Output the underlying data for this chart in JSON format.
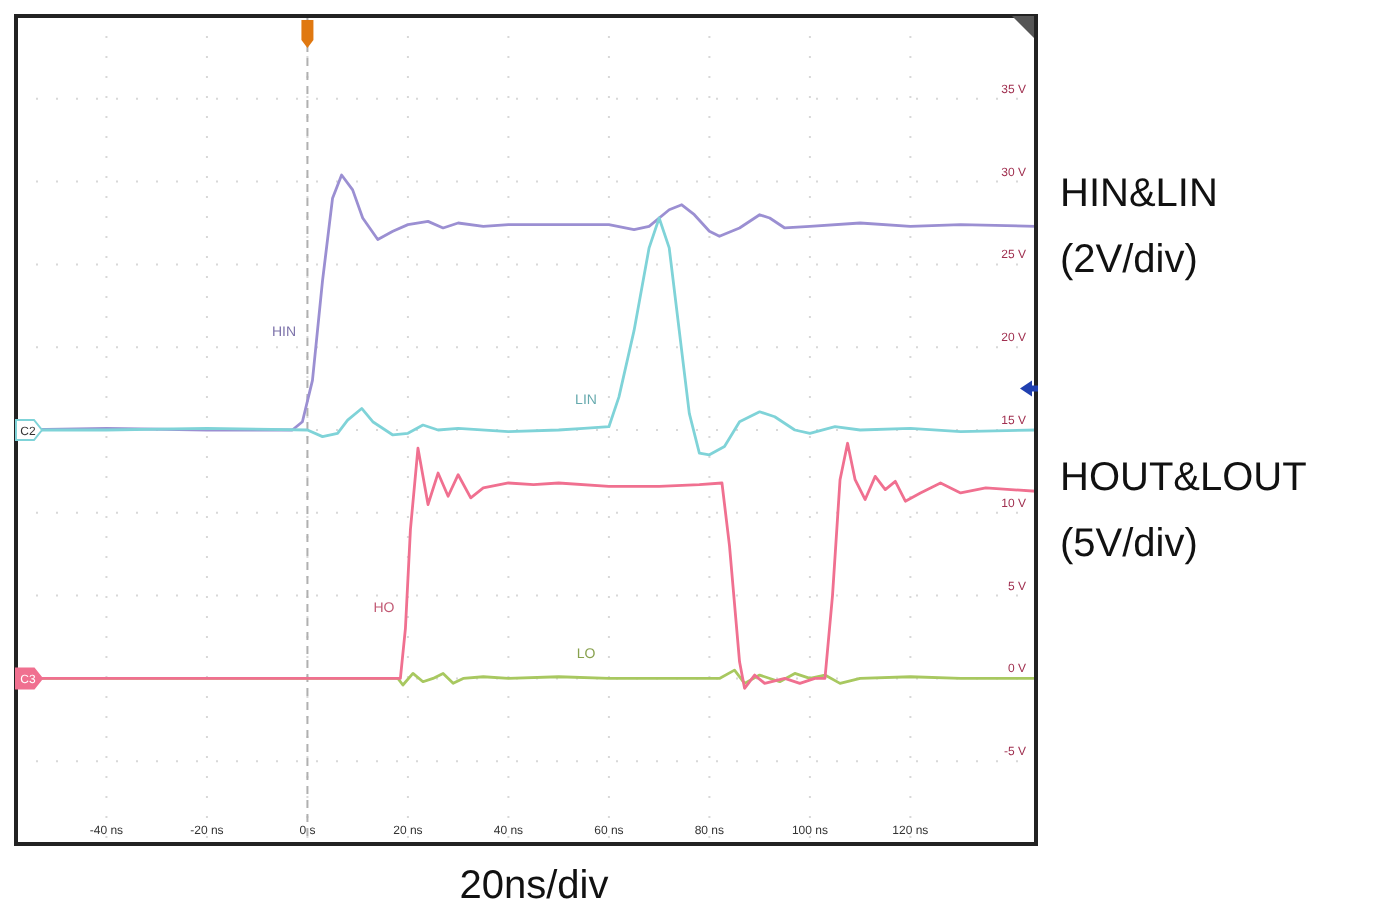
{
  "chart_data": {
    "type": "line",
    "xlabel": "20ns/div",
    "xlim": [
      -58,
      145
    ],
    "ylim": [
      -10,
      40
    ],
    "xticks": [
      {
        "value": -40,
        "label": "-40 ns"
      },
      {
        "value": -20,
        "label": "-20 ns"
      },
      {
        "value": 0,
        "label": "0 s"
      },
      {
        "value": 20,
        "label": "20 ns"
      },
      {
        "value": 40,
        "label": "40 ns"
      },
      {
        "value": 60,
        "label": "60 ns"
      },
      {
        "value": 80,
        "label": "80 ns"
      },
      {
        "value": 100,
        "label": "100 ns"
      },
      {
        "value": 120,
        "label": "120 ns"
      }
    ],
    "yticks": [
      {
        "value": -5,
        "label": "-5 V"
      },
      {
        "value": 0,
        "label": "0 V"
      },
      {
        "value": 5,
        "label": "5 V"
      },
      {
        "value": 10,
        "label": "10 V"
      },
      {
        "value": 15,
        "label": "15 V"
      },
      {
        "value": 20,
        "label": "20 V"
      },
      {
        "value": 25,
        "label": "25 V"
      },
      {
        "value": 30,
        "label": "30 V"
      },
      {
        "value": 35,
        "label": "35 V"
      }
    ],
    "grid": true,
    "line_style": "solid",
    "marker": "none",
    "ref_lines": [
      {
        "axis": "x",
        "value": 0,
        "color": "#b0b0b0",
        "line_style": "dashed"
      }
    ],
    "annotations": [
      "HIN&LIN\n(2V/div)",
      "HOUT&LOUT\n(5V/div)",
      {
        "text": "C2",
        "x": -58,
        "y": 15
      },
      {
        "text": "C3",
        "x": -58,
        "y": 0
      }
    ],
    "series": [
      {
        "name": "HIN",
        "color": "#9b8fd2",
        "x": [
          -58,
          -40,
          -20,
          -3,
          -1,
          1,
          3,
          5,
          6.8,
          9,
          11,
          14,
          17,
          20,
          24,
          27,
          30,
          35,
          40,
          50,
          60,
          65,
          68,
          72,
          74.5,
          77,
          80,
          82,
          86,
          90,
          92,
          95,
          100,
          110,
          120,
          130,
          145
        ],
        "values": [
          15,
          15.1,
          15,
          15,
          15.5,
          18,
          24,
          29,
          30.4,
          29.5,
          27.8,
          26.5,
          27,
          27.4,
          27.6,
          27.2,
          27.5,
          27.3,
          27.4,
          27.4,
          27.4,
          27.1,
          27.3,
          28.3,
          28.6,
          28,
          27,
          26.7,
          27.2,
          28,
          27.8,
          27.2,
          27.3,
          27.5,
          27.3,
          27.4,
          27.3
        ]
      },
      {
        "name": "LIN",
        "color": "#7fd3d8",
        "x": [
          -58,
          -40,
          -20,
          0,
          3,
          6,
          8,
          10.8,
          13,
          17,
          20,
          23,
          26,
          30,
          40,
          50,
          55,
          60,
          62,
          65,
          68,
          70,
          72,
          74,
          76,
          78,
          80,
          83,
          86,
          90,
          93,
          97,
          100,
          105,
          110,
          120,
          130,
          145
        ],
        "values": [
          15,
          15,
          15.1,
          15,
          14.6,
          14.8,
          15.6,
          16.3,
          15.5,
          14.7,
          14.8,
          15.3,
          15,
          15.1,
          14.9,
          15,
          15.1,
          15.2,
          17,
          21,
          26,
          27.8,
          26,
          21,
          16,
          13.6,
          13.5,
          14,
          15.5,
          16.1,
          15.8,
          15,
          14.8,
          15.2,
          15,
          15.1,
          14.9,
          15
        ]
      },
      {
        "name": "LO",
        "color": "#a8c860",
        "x": [
          -58,
          18,
          19,
          21,
          23,
          25,
          27,
          29,
          31,
          35,
          40,
          50,
          60,
          70,
          82,
          85,
          87,
          90,
          94,
          97,
          100,
          103,
          106,
          110,
          120,
          130,
          145
        ],
        "values": [
          0,
          0,
          -0.4,
          0.3,
          -0.2,
          0,
          0.3,
          -0.3,
          0,
          0.1,
          0,
          0.1,
          0,
          0,
          0,
          0.5,
          -0.3,
          0.2,
          -0.2,
          0.3,
          0,
          0.2,
          -0.3,
          0,
          0.1,
          0,
          0
        ]
      },
      {
        "name": "HO",
        "color": "#f07090",
        "x": [
          -58,
          18.5,
          19.5,
          20.5,
          22,
          24,
          26,
          28,
          30,
          32.5,
          35,
          40,
          45,
          50,
          60,
          70,
          78,
          82.5,
          84,
          86,
          87,
          89,
          91,
          95,
          98,
          101,
          103,
          104.5,
          106,
          107.5,
          109,
          111,
          113,
          115,
          117,
          119,
          122,
          126,
          130,
          135,
          145
        ],
        "values": [
          0,
          0,
          3,
          9,
          13.9,
          10.5,
          12.4,
          11,
          12.3,
          10.9,
          11.5,
          11.8,
          11.7,
          11.8,
          11.6,
          11.6,
          11.7,
          11.8,
          8,
          1,
          -0.6,
          0.2,
          -0.3,
          0,
          -0.3,
          0,
          0,
          5,
          12,
          14.2,
          12,
          10.8,
          12.2,
          11.4,
          11.9,
          10.7,
          11.2,
          11.8,
          11.2,
          11.5,
          11.3
        ]
      }
    ]
  }
}
